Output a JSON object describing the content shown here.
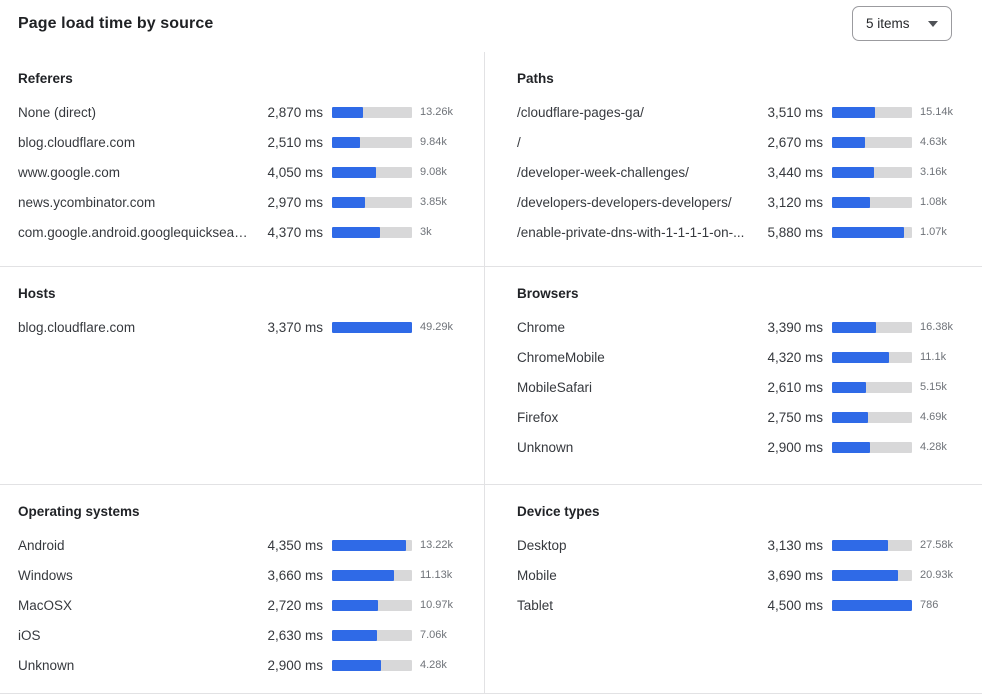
{
  "header": {
    "title": "Page load time by source",
    "items_selector": {
      "label": "5 items"
    }
  },
  "colors": {
    "bar_fill": "#2F6AE7",
    "bar_track": "#D8D8D9"
  },
  "unit": "ms",
  "panels": [
    {
      "id": "referers",
      "title": "Referers",
      "scale_max": 7300,
      "rows": [
        {
          "label": "None (direct)",
          "ms": 2870,
          "ms_display": "2,870 ms",
          "count": "13.26k"
        },
        {
          "label": "blog.cloudflare.com",
          "ms": 2510,
          "ms_display": "2,510 ms",
          "count": "9.84k"
        },
        {
          "label": "www.google.com",
          "ms": 4050,
          "ms_display": "4,050 ms",
          "count": "9.08k"
        },
        {
          "label": "news.ycombinator.com",
          "ms": 2970,
          "ms_display": "2,970 ms",
          "count": "3.85k"
        },
        {
          "label": "com.google.android.googlequicksearc...",
          "ms": 4370,
          "ms_display": "4,370 ms",
          "count": "3k"
        }
      ]
    },
    {
      "id": "paths",
      "title": "Paths",
      "scale_max": 6550,
      "rows": [
        {
          "label": "/cloudflare-pages-ga/",
          "ms": 3510,
          "ms_display": "3,510 ms",
          "count": "15.14k"
        },
        {
          "label": "/",
          "ms": 2670,
          "ms_display": "2,670 ms",
          "count": "4.63k"
        },
        {
          "label": "/developer-week-challenges/",
          "ms": 3440,
          "ms_display": "3,440 ms",
          "count": "3.16k"
        },
        {
          "label": "/developers-developers-developers/",
          "ms": 3120,
          "ms_display": "3,120 ms",
          "count": "1.08k"
        },
        {
          "label": "/enable-private-dns-with-1-1-1-1-on-...",
          "ms": 5880,
          "ms_display": "5,880 ms",
          "count": "1.07k"
        }
      ]
    },
    {
      "id": "hosts",
      "title": "Hosts",
      "scale_max": 3370,
      "rows": [
        {
          "label": "blog.cloudflare.com",
          "ms": 3370,
          "ms_display": "3,370 ms",
          "count": "49.29k"
        }
      ]
    },
    {
      "id": "browsers",
      "title": "Browsers",
      "scale_max": 6100,
      "rows": [
        {
          "label": "Chrome",
          "ms": 3390,
          "ms_display": "3,390 ms",
          "count": "16.38k"
        },
        {
          "label": "ChromeMobile",
          "ms": 4320,
          "ms_display": "4,320 ms",
          "count": "11.1k"
        },
        {
          "label": "MobileSafari",
          "ms": 2610,
          "ms_display": "2,610 ms",
          "count": "5.15k"
        },
        {
          "label": "Firefox",
          "ms": 2750,
          "ms_display": "2,750 ms",
          "count": "4.69k"
        },
        {
          "label": "Unknown",
          "ms": 2900,
          "ms_display": "2,900 ms",
          "count": "4.28k"
        }
      ]
    },
    {
      "id": "operating-systems",
      "title": "Operating systems",
      "scale_max": 4700,
      "rows": [
        {
          "label": "Android",
          "ms": 4350,
          "ms_display": "4,350 ms",
          "count": "13.22k"
        },
        {
          "label": "Windows",
          "ms": 3660,
          "ms_display": "3,660 ms",
          "count": "11.13k"
        },
        {
          "label": "MacOSX",
          "ms": 2720,
          "ms_display": "2,720 ms",
          "count": "10.97k"
        },
        {
          "label": "iOS",
          "ms": 2630,
          "ms_display": "2,630 ms",
          "count": "7.06k"
        },
        {
          "label": "Unknown",
          "ms": 2900,
          "ms_display": "2,900 ms",
          "count": "4.28k"
        }
      ]
    },
    {
      "id": "device-types",
      "title": "Device types",
      "scale_max": 4500,
      "rows": [
        {
          "label": "Desktop",
          "ms": 3130,
          "ms_display": "3,130 ms",
          "count": "27.58k"
        },
        {
          "label": "Mobile",
          "ms": 3690,
          "ms_display": "3,690 ms",
          "count": "20.93k"
        },
        {
          "label": "Tablet",
          "ms": 4500,
          "ms_display": "4,500 ms",
          "count": "786"
        }
      ]
    }
  ]
}
